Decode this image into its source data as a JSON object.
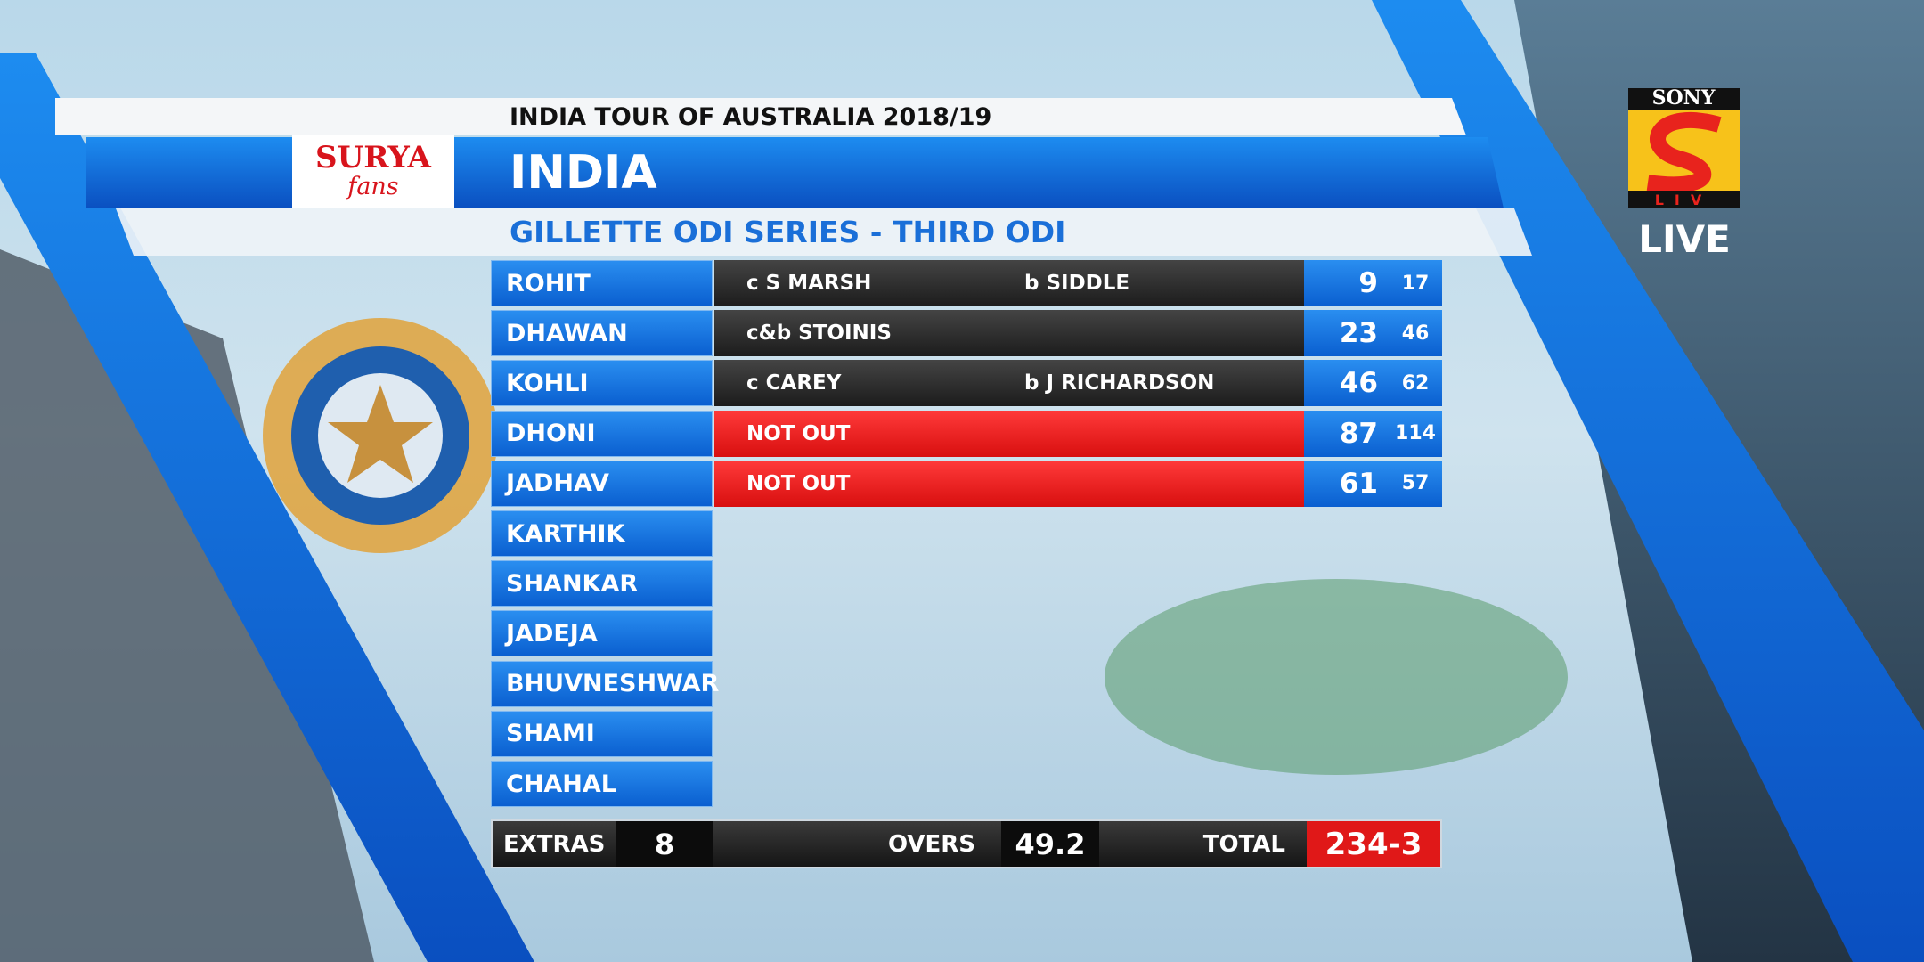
{
  "header": {
    "tour": "INDIA TOUR OF AUSTRALIA 2018/19",
    "sponsor": "SURYA",
    "sponsor_tagline": "fans",
    "team": "INDIA",
    "series": "GILLETTE ODI SERIES - THIRD ODI"
  },
  "broadcaster": {
    "brand": "SONY",
    "service": "LIV",
    "status": "LIVE"
  },
  "batting": [
    {
      "name": "ROHIT",
      "dismissal": "c S MARSH",
      "bowler": "b SIDDLE",
      "runs": 9,
      "balls": 17
    },
    {
      "name": "DHAWAN",
      "dismissal": "c&b STOINIS",
      "runs": 23,
      "balls": 46
    },
    {
      "name": "KOHLI",
      "dismissal": "c CAREY",
      "bowler": "b J RICHARDSON",
      "runs": 46,
      "balls": 62
    },
    {
      "name": "DHONI",
      "dismissal": "NOT OUT",
      "runs": 87,
      "balls": 114
    },
    {
      "name": "JADHAV",
      "dismissal": "NOT OUT",
      "runs": 61,
      "balls": 57
    },
    {
      "name": "KARTHIK"
    },
    {
      "name": "SHANKAR"
    },
    {
      "name": "JADEJA"
    },
    {
      "name": "BHUVNESHWAR"
    },
    {
      "name": "SHAMI"
    },
    {
      "name": "CHAHAL"
    }
  ],
  "summary": {
    "extras_label": "EXTRAS",
    "extras": 8,
    "overs_label": "OVERS",
    "overs": 49.2,
    "total_label": "TOTAL",
    "total": "234-3"
  }
}
